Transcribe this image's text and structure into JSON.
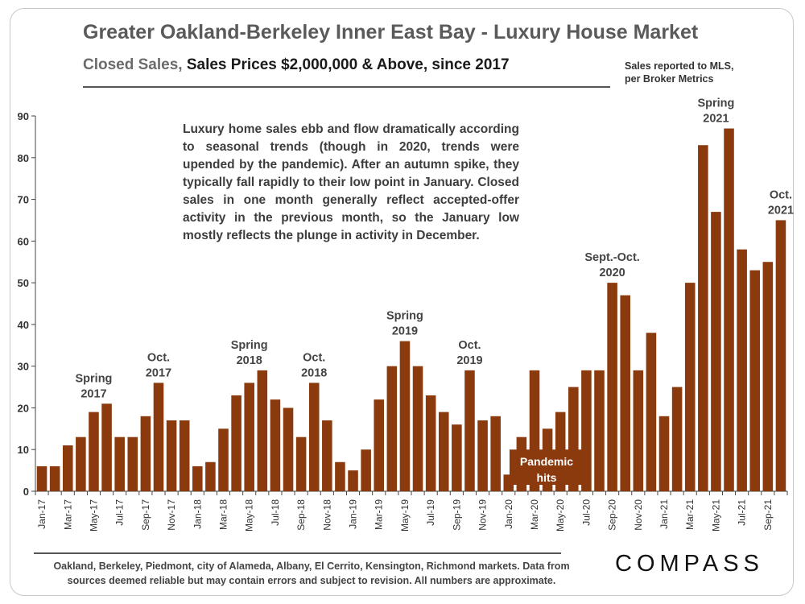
{
  "header": {
    "title": "Greater Oakland-Berkeley Inner East Bay - Luxury House Market",
    "subtitle_prefix": "Closed Sales, ",
    "subtitle_main": "Sales Prices $2,000,000 & Above, since 2017",
    "source_line1": "Sales reported to MLS,",
    "source_line2": "per Broker Metrics"
  },
  "annotation_text": "Luxury home sales ebb and flow dramatically according to seasonal trends (though in 2020, trends were upended by the pandemic). After an autumn spike, they typically fall rapidly to their low point in January. Closed sales in one month generally reflect accepted-offer activity in the previous month, so the January low mostly reflects the plunge in activity in December.",
  "footer": {
    "line1": "Oakland, Berkeley, Piedmont, city of Alameda, Albany, El Cerrito, Kensington, Richmond markets. Data from",
    "line2": "sources deemed reliable but may contain errors and subject to revision. All numbers are approximate."
  },
  "logo": "COMPASS",
  "colors": {
    "bar": "#8B3A0E",
    "axis": "#444444"
  },
  "chart_data": {
    "type": "bar",
    "title": "Closed Sales, Sales Prices $2,000,000 & Above, since 2017",
    "xlabel": "",
    "ylabel": "",
    "ylim": [
      0,
      90
    ],
    "yticks": [
      0,
      10,
      20,
      30,
      40,
      50,
      60,
      70,
      80,
      90
    ],
    "grid": false,
    "categories": [
      "Jan-17",
      "Feb-17",
      "Mar-17",
      "Apr-17",
      "May-17",
      "Jun-17",
      "Jul-17",
      "Aug-17",
      "Sep-17",
      "Oct-17",
      "Nov-17",
      "Dec-17",
      "Jan-18",
      "Feb-18",
      "Mar-18",
      "Apr-18",
      "May-18",
      "Jun-18",
      "Jul-18",
      "Aug-18",
      "Sep-18",
      "Oct-18",
      "Nov-18",
      "Dec-18",
      "Jan-19",
      "Feb-19",
      "Mar-19",
      "Apr-19",
      "May-19",
      "Jun-19",
      "Jul-19",
      "Aug-19",
      "Sep-19",
      "Oct-19",
      "Nov-19",
      "Dec-19",
      "Jan-20",
      "Feb-20",
      "Mar-20",
      "Apr-20",
      "May-20",
      "Jun-20",
      "Jul-20",
      "Aug-20",
      "Sep-20",
      "Oct-20",
      "Nov-20",
      "Dec-20",
      "Jan-21",
      "Feb-21",
      "Mar-21",
      "Apr-21",
      "May-21",
      "Jun-21",
      "Jul-21",
      "Aug-21",
      "Sep-21",
      "Oct-21"
    ],
    "values": [
      6,
      6,
      11,
      13,
      19,
      21,
      13,
      13,
      18,
      26,
      17,
      17,
      6,
      7,
      15,
      23,
      26,
      29,
      22,
      20,
      13,
      26,
      17,
      7,
      5,
      10,
      22,
      30,
      36,
      30,
      23,
      19,
      16,
      29,
      17,
      18,
      4,
      13,
      29,
      15,
      19,
      25,
      29,
      29,
      50,
      47,
      29,
      38,
      18,
      25,
      50,
      83,
      67,
      87,
      58,
      53,
      55,
      65
    ],
    "tick_labels": [
      "Jan-17",
      "Mar-17",
      "May-17",
      "Jul-17",
      "Sep-17",
      "Nov-17",
      "Jan-18",
      "Mar-18",
      "May-18",
      "Jul-18",
      "Sep-18",
      "Nov-18",
      "Jan-19",
      "Mar-19",
      "May-19",
      "Jul-19",
      "Sep-19",
      "Nov-19",
      "Jan-20",
      "Mar-20",
      "May-20",
      "Jul-20",
      "Sep-20",
      "Nov-20",
      "Jan-21",
      "Mar-21",
      "May-21",
      "Jul-21",
      "Sep-21"
    ],
    "annotations": [
      {
        "lines": [
          "Spring",
          "2017"
        ],
        "at": "May-17",
        "value": 21
      },
      {
        "lines": [
          "Oct.",
          "2017"
        ],
        "at": "Oct-17",
        "value": 26
      },
      {
        "lines": [
          "Spring",
          "2018"
        ],
        "at": "May-18",
        "value": 29
      },
      {
        "lines": [
          "Oct.",
          "2018"
        ],
        "at": "Oct-18",
        "value": 26
      },
      {
        "lines": [
          "Spring",
          "2019"
        ],
        "at": "May-19",
        "value": 36
      },
      {
        "lines": [
          "Oct.",
          "2019"
        ],
        "at": "Oct-19",
        "value": 29
      },
      {
        "lines": [
          "Sept.-Oct.",
          "2020"
        ],
        "at": "Sep-20",
        "value": 50
      },
      {
        "lines": [
          "Spring",
          "2021"
        ],
        "at": "May-21",
        "value": 87
      },
      {
        "lines": [
          "Oct.",
          "2021"
        ],
        "at": "Oct-21",
        "value": 65
      }
    ],
    "pandemic_label": {
      "lines": [
        "Pandemic",
        "hits"
      ],
      "at": "Mar-20"
    }
  }
}
